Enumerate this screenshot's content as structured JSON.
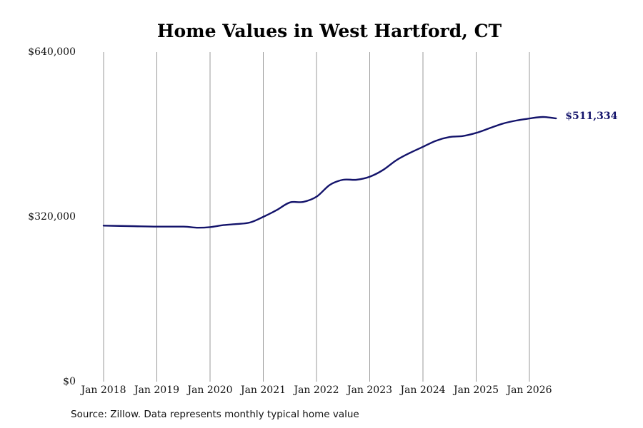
{
  "chart_data": {
    "type": "line",
    "title": "Home Values in West Hartford, CT",
    "xlabel": "",
    "ylabel": "",
    "ylim": [
      0,
      640000
    ],
    "y_ticks": [
      "$0",
      "$320,000",
      "$640,000"
    ],
    "y_tick_values": [
      0,
      320000,
      640000
    ],
    "x_ticks": [
      "Jan 2018",
      "Jan 2019",
      "Jan 2020",
      "Jan 2021",
      "Jan 2022",
      "Jan 2023",
      "Jan 2024",
      "Jan 2025",
      "Jan 2026"
    ],
    "x_tick_values": [
      2018,
      2019,
      2020,
      2021,
      2022,
      2023,
      2024,
      2025,
      2026
    ],
    "xlim": [
      2017.6,
      2027.0
    ],
    "grid": "vertical",
    "series": [
      {
        "color": "#13136b",
        "x": [
          2018.0,
          2018.5,
          2019.0,
          2019.5,
          2019.75,
          2020.0,
          2020.25,
          2020.5,
          2020.75,
          2021.0,
          2021.25,
          2021.5,
          2021.75,
          2022.0,
          2022.25,
          2022.5,
          2022.75,
          2023.0,
          2023.25,
          2023.5,
          2023.75,
          2024.0,
          2024.25,
          2024.5,
          2024.75,
          2025.0,
          2025.25,
          2025.5,
          2025.75,
          2026.0,
          2026.25,
          2026.5
        ],
        "y": [
          303000,
          302000,
          301000,
          301000,
          299000,
          300000,
          304000,
          306000,
          309000,
          320000,
          333000,
          348000,
          349000,
          359000,
          382000,
          392000,
          392000,
          398000,
          411000,
          430000,
          444000,
          456000,
          468000,
          475000,
          477000,
          483000,
          492000,
          501000,
          507000,
          511000,
          514000,
          511334
        ]
      }
    ],
    "end_label": "$511,334"
  },
  "source_note": "Source: Zillow. Data represents monthly typical home value"
}
